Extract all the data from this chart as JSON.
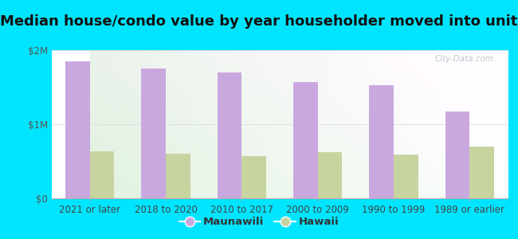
{
  "title": "Median house/condo value by year householder moved into unit",
  "categories": [
    "2021 or later",
    "2018 to 2020",
    "2010 to 2017",
    "2000 to 2009",
    "1990 to 1999",
    "1989 or earlier"
  ],
  "maunawili": [
    1850000,
    1750000,
    1700000,
    1575000,
    1525000,
    1175000
  ],
  "hawaii": [
    630000,
    600000,
    570000,
    620000,
    595000,
    700000
  ],
  "maunawili_color": "#c9a8e0",
  "hawaii_color": "#c8d4a0",
  "background_color": "#00e5ff",
  "plot_bg": "#e8f5e0",
  "ylim": [
    0,
    2000000
  ],
  "yticks": [
    0,
    1000000,
    2000000
  ],
  "ytick_labels": [
    "$0",
    "$1M",
    "$2M"
  ],
  "watermark": "City-Data.com",
  "legend_maunawili": "Maunawili",
  "legend_hawaii": "Hawaii",
  "title_fontsize": 13,
  "tick_fontsize": 8.5,
  "legend_fontsize": 9.5
}
